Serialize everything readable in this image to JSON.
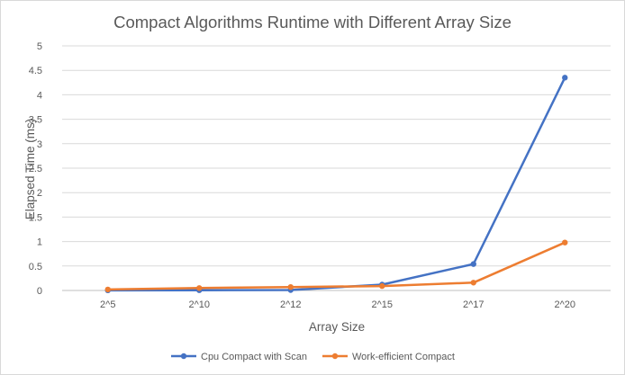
{
  "chart_data": {
    "type": "line",
    "title": "Compact Algorithms Runtime with Different Array Size",
    "xlabel": "Array Size",
    "ylabel": "Elapsed Time (ms)",
    "categories": [
      "2^5",
      "2^10",
      "2^12",
      "2^15",
      "2^17",
      "2^20"
    ],
    "ylim": [
      0,
      5
    ],
    "yticks": [
      "0",
      "0.5",
      "1",
      "1.5",
      "2",
      "2.5",
      "3",
      "3.5",
      "4",
      "4.5",
      "5"
    ],
    "ytick_values": [
      0,
      0.5,
      1,
      1.5,
      2,
      2.5,
      3,
      3.5,
      4,
      4.5,
      5
    ],
    "grid": true,
    "legend_position": "bottom",
    "series": [
      {
        "name": "Cpu Compact with Scan",
        "color": "#4472c4",
        "values": [
          0.003,
          0.005,
          0.009,
          0.12,
          0.54,
          4.35
        ]
      },
      {
        "name": "Work-efficient Compact",
        "color": "#ed7d31",
        "values": [
          0.02,
          0.05,
          0.07,
          0.09,
          0.16,
          0.98
        ]
      }
    ]
  }
}
